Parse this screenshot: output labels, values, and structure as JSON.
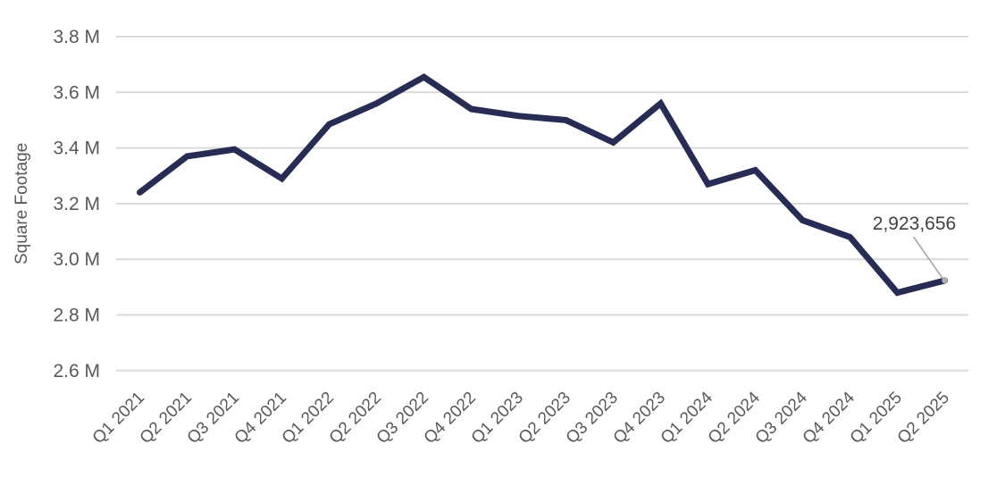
{
  "chart_data": {
    "type": "line",
    "title": "",
    "xlabel": "",
    "ylabel": "Square Footage",
    "categories": [
      "Q1 2021",
      "Q2 2021",
      "Q3 2021",
      "Q4 2021",
      "Q1 2022",
      "Q2 2022",
      "Q3 2022",
      "Q4 2022",
      "Q1 2023",
      "Q2 2023",
      "Q3 2023",
      "Q4 2023",
      "Q1 2024",
      "Q2 2024",
      "Q3 2024",
      "Q4 2024",
      "Q1 2025",
      "Q2 2025"
    ],
    "series": [
      {
        "name": "Square Footage",
        "values": [
          3240000,
          3370000,
          3395000,
          3290000,
          3485000,
          3560000,
          3655000,
          3540000,
          3515000,
          3500000,
          3420000,
          3560000,
          3270000,
          3320000,
          3140000,
          3080000,
          2880000,
          2923656
        ]
      }
    ],
    "ylim": [
      2600000,
      3800000
    ],
    "yticks": [
      {
        "value": 3800000,
        "label": "3.8 M"
      },
      {
        "value": 3600000,
        "label": "3.6 M"
      },
      {
        "value": 3400000,
        "label": "3.4 M"
      },
      {
        "value": 3200000,
        "label": "3.2 M"
      },
      {
        "value": 3000000,
        "label": "3.0 M"
      },
      {
        "value": 2800000,
        "label": "2.8 M"
      },
      {
        "value": 2600000,
        "label": "2.6 M"
      }
    ],
    "grid": true,
    "legend": "none",
    "x_label_rotation_deg": -45,
    "annotation": {
      "label": "2,923,656",
      "point_index": 17,
      "value": 2923656
    }
  },
  "colors": {
    "background": "#FFFFFF",
    "line": "#262C54",
    "grid": "#D9D9D9",
    "axis_text": "#58595B",
    "annotation_text": "#414042",
    "leader_line": "#A7A7A9",
    "marker_dot": "#AFAFB1"
  }
}
